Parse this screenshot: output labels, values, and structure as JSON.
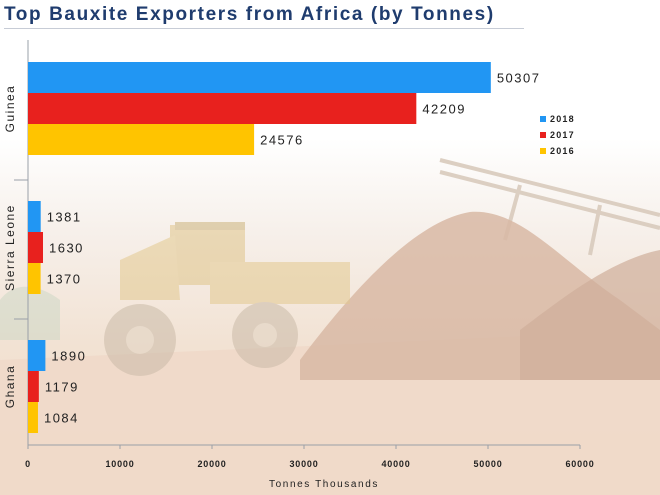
{
  "chart_data": {
    "type": "bar",
    "orientation": "horizontal",
    "title": "Top Bauxite Exporters from Africa (by Tonnes)",
    "xlabel": "Tonnes Thousands",
    "ylabel": "",
    "categories": [
      "Guinea",
      "Sierra Leone",
      "Ghana"
    ],
    "series": [
      {
        "name": "2018",
        "color": "#2196f3",
        "values": [
          50307,
          1381,
          1890
        ]
      },
      {
        "name": "2017",
        "color": "#e8211e",
        "values": [
          42209,
          1630,
          1179
        ]
      },
      {
        "name": "2016",
        "color": "#ffc400",
        "values": [
          24576,
          1370,
          1084
        ]
      }
    ],
    "xlim": [
      0,
      60000
    ],
    "xticks": [
      "0",
      "10000",
      "20000",
      "30000",
      "40000",
      "50000",
      "60000"
    ],
    "tick_values": [
      0,
      10000,
      20000,
      30000,
      40000,
      50000,
      60000
    ],
    "legend_position": "right",
    "grid": false
  }
}
